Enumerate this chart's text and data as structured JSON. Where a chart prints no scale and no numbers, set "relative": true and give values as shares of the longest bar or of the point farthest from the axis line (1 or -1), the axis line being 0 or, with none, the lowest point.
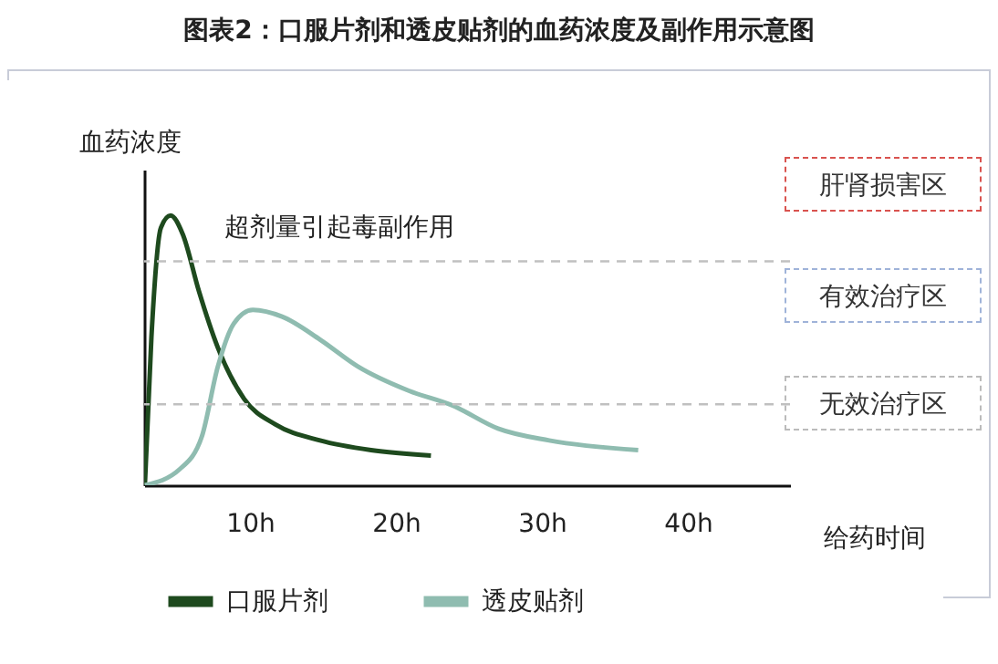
{
  "chart_data": {
    "type": "line",
    "title": "图表2：口服片剂和透皮贴剂的血药浓度及副作用示意图",
    "xlabel": "给药时间",
    "ylabel": "血药浓度",
    "relative": true,
    "xlim": [
      2.75,
      47
    ],
    "xticks": [
      {
        "value": 10,
        "label": "10h"
      },
      {
        "value": 20,
        "label": "20h"
      },
      {
        "value": 30,
        "label": "30h"
      },
      {
        "value": 40,
        "label": "40h"
      }
    ],
    "series": [
      {
        "name": "口服片剂",
        "color": "#1e4a1e",
        "x": [
          2.8,
          3.25,
          3.9,
          4.56,
          5.4,
          6.5,
          7.8,
          9.6,
          11.75,
          14.8,
          18.3,
          22.4
        ],
        "values": [
          0,
          0.55,
          0.955,
          1,
          0.93,
          0.72,
          0.51,
          0.32,
          0.225,
          0.166,
          0.13,
          0.11
        ]
      },
      {
        "name": "透皮贴剂",
        "color": "#8fbcb0",
        "x": [
          2.8,
          5.2,
          6.7,
          7.8,
          8.9,
          10.2,
          12.2,
          14.8,
          17.4,
          20.9,
          23.9,
          27,
          30.5,
          36.6
        ],
        "values": [
          0,
          0.06,
          0.18,
          0.44,
          0.6,
          0.65,
          0.625,
          0.54,
          0.44,
          0.35,
          0.295,
          0.21,
          0.166,
          0.13
        ]
      }
    ],
    "ref_lines": [
      {
        "axis": "y",
        "value": 0.83,
        "color": "#c0c0c0",
        "line_style": "dashed"
      },
      {
        "axis": "y",
        "value": 0.3,
        "color": "#c0c0c0",
        "line_style": "dashed"
      }
    ],
    "annotations": [
      "超剂量引起毒副作用",
      "肝肾损害区",
      "有效治疗区",
      "无效治疗区"
    ],
    "legend": "bottom",
    "line_style": "solid",
    "marker": "none",
    "grid": false
  }
}
